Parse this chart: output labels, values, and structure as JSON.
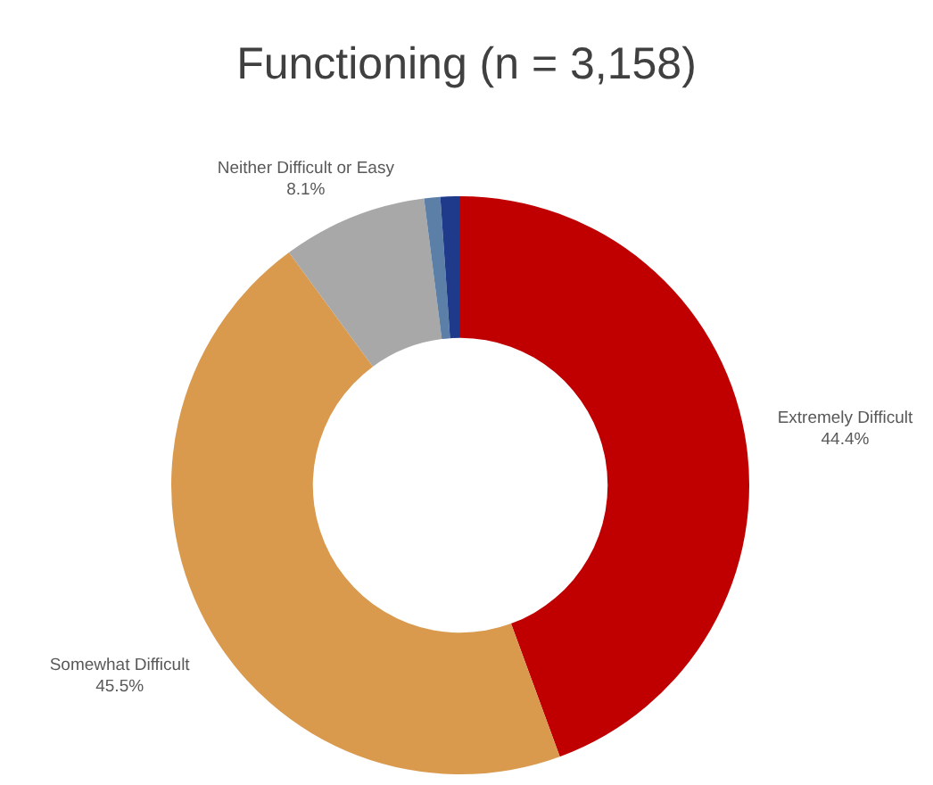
{
  "chart_data": {
    "type": "donut",
    "title": "Functioning (n = 3,158)",
    "categories": [
      "Extremely Difficult",
      "Somewhat Difficult",
      "Neither Difficult or Easy",
      null,
      null
    ],
    "values": [
      44.4,
      45.5,
      8.1,
      0.9,
      1.1
    ],
    "colors": [
      "#c00000",
      "#d99a4e",
      "#a8a8a8",
      "#5b7fa6",
      "#1f3a8a"
    ],
    "value_labels": [
      "44.4%",
      "45.5%",
      "8.1%",
      null,
      null
    ]
  }
}
